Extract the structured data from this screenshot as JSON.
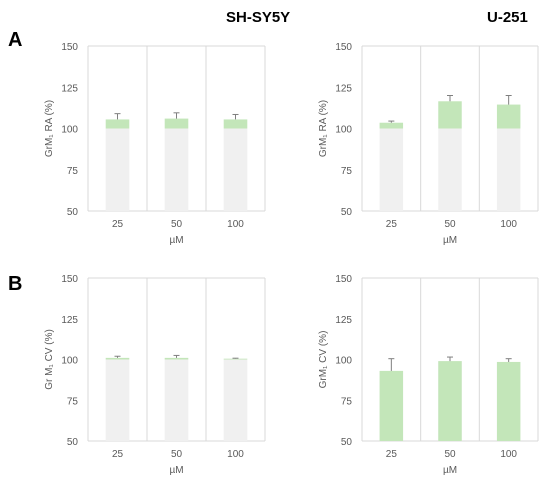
{
  "figure": {
    "column_titles": [
      "SH-SY5Y",
      "U-251"
    ],
    "row_labels": [
      "A",
      "B"
    ]
  },
  "colors": {
    "bar_gray": "#f0f0f0",
    "bar_green": "#c3e6b9",
    "grid": "#d9d9d9",
    "error": "#7f7f7f",
    "tick_text": "#595959"
  },
  "chart_data": [
    {
      "type": "bar",
      "panel": "A",
      "column": "SH-SY5Y",
      "categories": [
        "25",
        "50",
        "100"
      ],
      "ylabel": "GrM₁ RA (%)",
      "xlabel": "µM",
      "ylim": [
        50,
        150
      ],
      "yticks": [
        50,
        75,
        100,
        125,
        150
      ],
      "grid": "vertical",
      "series": [
        {
          "values": [
            105.5,
            106,
            105.5
          ],
          "error": [
            3.5,
            3.5,
            3
          ]
        }
      ]
    },
    {
      "type": "bar",
      "panel": "A",
      "column": "U-251",
      "categories": [
        "25",
        "50",
        "100"
      ],
      "ylabel": "GrM₁ RA (%)",
      "xlabel": "µM",
      "ylim": [
        50,
        150
      ],
      "yticks": [
        50,
        75,
        100,
        125,
        150
      ],
      "grid": "vertical",
      "series": [
        {
          "values": [
            103.5,
            116.5,
            114.5
          ],
          "error": [
            1,
            3.5,
            5.5
          ]
        }
      ]
    },
    {
      "type": "bar",
      "panel": "B",
      "column": "SH-SY5Y",
      "categories": [
        "25",
        "50",
        "100"
      ],
      "ylabel": "Gr M₁ CV (%)",
      "xlabel": "µM",
      "ylim": [
        50,
        150
      ],
      "yticks": [
        50,
        75,
        100,
        125,
        150
      ],
      "grid": "vertical",
      "series": [
        {
          "values": [
            101,
            101,
            100.5
          ],
          "error": [
            1,
            1.5,
            0.3
          ]
        }
      ]
    },
    {
      "type": "bar",
      "panel": "B",
      "column": "U-251",
      "categories": [
        "25",
        "50",
        "100"
      ],
      "ylabel": "GrM₁ CV (%)",
      "xlabel": "µM",
      "ylim": [
        50,
        150
      ],
      "yticks": [
        50,
        75,
        100,
        125,
        150
      ],
      "grid": "vertical",
      "series": [
        {
          "values": [
            93,
            99,
            98.5
          ],
          "error": [
            7.5,
            2.5,
            2
          ]
        }
      ]
    }
  ]
}
